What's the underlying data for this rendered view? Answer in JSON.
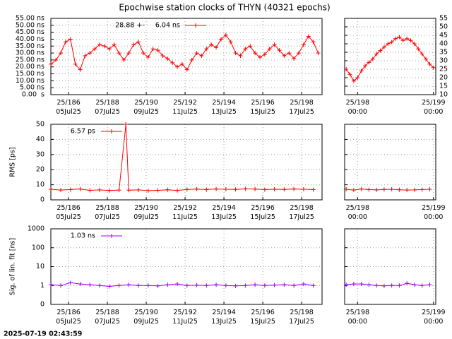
{
  "title": "Epochwise station clocks of THYN (40321 epochs)",
  "footer": "2025-07-19 02:43:59",
  "chart_data": [
    {
      "type": "line",
      "xlim": [
        185.09,
        199.05
      ],
      "ylim": [
        0,
        55
      ],
      "yticks": [
        {
          "value": 0,
          "label": "0.00  s"
        },
        {
          "value": 5,
          "label": "5.00 ns"
        },
        {
          "value": 10,
          "label": "10.00 ns"
        },
        {
          "value": 15,
          "label": "15.00 ns"
        },
        {
          "value": 20,
          "label": "20.00 ns"
        },
        {
          "value": 25,
          "label": "25.00 ns"
        },
        {
          "value": 30,
          "label": "30.00 ns"
        },
        {
          "value": 35,
          "label": "35.00 ns"
        },
        {
          "value": 40,
          "label": "40.00 ns"
        },
        {
          "value": 45,
          "label": "45.00 ns"
        },
        {
          "value": 50,
          "label": "50.00 ns"
        },
        {
          "value": 55,
          "label": "55.00 ns"
        }
      ],
      "xticks": [
        {
          "value": 186,
          "label": "25/186\n05Jul25"
        },
        {
          "value": 188,
          "label": "25/188\n07Jul25"
        },
        {
          "value": 190,
          "label": "25/190\n09Jul25"
        },
        {
          "value": 192,
          "label": "25/192\n11Jul25"
        },
        {
          "value": 194,
          "label": "25/194\n13Jul25"
        },
        {
          "value": 196,
          "label": "25/196\n15Jul25"
        },
        {
          "value": 198,
          "label": "25/198\n17Jul25"
        }
      ],
      "grid": true,
      "ytick_labels": "left",
      "x": [
        185.1,
        185.35,
        185.6,
        185.85,
        186.1,
        186.35,
        186.6,
        186.85,
        187.1,
        187.35,
        187.6,
        187.85,
        188.1,
        188.35,
        188.6,
        188.85,
        189.1,
        189.35,
        189.6,
        189.85,
        190.1,
        190.35,
        190.6,
        190.85,
        191.1,
        191.35,
        191.6,
        191.85,
        192.1,
        192.35,
        192.6,
        192.85,
        193.1,
        193.35,
        193.6,
        193.85,
        194.1,
        194.35,
        194.6,
        194.85,
        195.1,
        195.35,
        195.6,
        195.85,
        196.1,
        196.35,
        196.6,
        196.85,
        197.1,
        197.35,
        197.6,
        197.85,
        198.1,
        198.35,
        198.6,
        198.85
      ],
      "series": [
        {
          "name": "28.88 +-     6.04 ns",
          "color": "#ff0000",
          "values": [
            22,
            25,
            30,
            38,
            40,
            22,
            18,
            28,
            30,
            33,
            36,
            35,
            33,
            36,
            30,
            25,
            30,
            36,
            38,
            30,
            27,
            33,
            32,
            28,
            26,
            23,
            20,
            22,
            18,
            25,
            30,
            28,
            33,
            36,
            34,
            40,
            43,
            38,
            30,
            28,
            33,
            35,
            30,
            27,
            29,
            33,
            36,
            32,
            28,
            30,
            26,
            30,
            36,
            42,
            38,
            30
          ]
        }
      ]
    },
    {
      "type": "line",
      "xlim": [
        197.83,
        199.03
      ],
      "ylim": [
        10,
        55
      ],
      "yticks": [
        10,
        15,
        20,
        25,
        30,
        35,
        40,
        45,
        50,
        55
      ],
      "xticks": [
        {
          "value": 198,
          "label": "25/198\n00:00"
        },
        {
          "value": 199,
          "label": "25/199\n00:00"
        }
      ],
      "grid": true,
      "ytick_labels": "right",
      "x": [
        197.85,
        197.9,
        197.95,
        198.0,
        198.05,
        198.1,
        198.15,
        198.2,
        198.25,
        198.3,
        198.35,
        198.4,
        198.45,
        198.5,
        198.55,
        198.6,
        198.65,
        198.7,
        198.75,
        198.8,
        198.85,
        198.9,
        198.95,
        199.0
      ],
      "series": [
        {
          "color": "#ff0000",
          "values": [
            25,
            22,
            18,
            20,
            24,
            27,
            29,
            31,
            34,
            36,
            38,
            40,
            41,
            43,
            44,
            42,
            43,
            42,
            40,
            37,
            34,
            31,
            28,
            26
          ]
        }
      ]
    },
    {
      "type": "line",
      "xlim": [
        185.09,
        199.05
      ],
      "ylim": [
        0,
        50
      ],
      "yticks": [
        0,
        10,
        20,
        30,
        40,
        50
      ],
      "xticks": [
        {
          "value": 186,
          "label": "25/186\n05Jul25"
        },
        {
          "value": 188,
          "label": "25/188\n07Jul25"
        },
        {
          "value": 190,
          "label": "25/190\n09Jul25"
        },
        {
          "value": 192,
          "label": "25/192\n11Jul25"
        },
        {
          "value": 194,
          "label": "25/194\n13Jul25"
        },
        {
          "value": 196,
          "label": "25/196\n15Jul25"
        },
        {
          "value": 198,
          "label": "25/198\n17Jul25"
        }
      ],
      "grid": true,
      "ytick_labels": "left",
      "ylabel": "RMS [ps]",
      "x": [
        185.1,
        185.6,
        186.1,
        186.6,
        187.1,
        187.6,
        188.1,
        188.6,
        188.95,
        189.1,
        189.6,
        190.1,
        190.6,
        191.1,
        191.6,
        192.1,
        192.6,
        193.1,
        193.6,
        194.1,
        194.6,
        195.1,
        195.6,
        196.1,
        196.6,
        197.1,
        197.6,
        198.1,
        198.6
      ],
      "series": [
        {
          "name": "6.57 ps",
          "color": "#ff0000",
          "values": [
            7,
            6.5,
            6.8,
            7.2,
            6.3,
            6.6,
            6.2,
            6.5,
            50,
            6.4,
            6.6,
            6.1,
            6.3,
            6.7,
            6.2,
            6.9,
            7.1,
            6.8,
            7.2,
            7,
            6.9,
            7.3,
            7.1,
            6.8,
            7,
            6.9,
            7.2,
            7,
            6.8
          ]
        }
      ]
    },
    {
      "type": "line",
      "xlim": [
        197.83,
        199.03
      ],
      "ylim": [
        0,
        50
      ],
      "yticks": [
        0,
        10,
        20,
        30,
        40,
        50
      ],
      "ytick_labels": "none",
      "xticks": [
        {
          "value": 198,
          "label": "25/198\n00:00"
        },
        {
          "value": 199,
          "label": "25/199\n00:00"
        }
      ],
      "grid": true,
      "x": [
        197.85,
        197.95,
        198.05,
        198.15,
        198.25,
        198.35,
        198.45,
        198.55,
        198.65,
        198.75,
        198.85,
        198.95
      ],
      "series": [
        {
          "color": "#ff0000",
          "values": [
            7,
            6.5,
            7.2,
            6.8,
            6.6,
            6.9,
            7,
            6.7,
            6.5,
            6.6,
            6.8,
            7
          ]
        }
      ]
    },
    {
      "type": "line",
      "log": true,
      "xlim": [
        185.09,
        199.05
      ],
      "ylim": [
        0.1,
        1000
      ],
      "yticks": [
        {
          "value": 0.1,
          "label": "0"
        },
        1,
        10,
        100,
        1000
      ],
      "xticks": [
        {
          "value": 186,
          "label": "25/186\n05Jul25"
        },
        {
          "value": 188,
          "label": "25/188\n07Jul25"
        },
        {
          "value": 190,
          "label": "25/190\n09Jul25"
        },
        {
          "value": 192,
          "label": "25/192\n11Jul25"
        },
        {
          "value": 194,
          "label": "25/194\n13Jul25"
        },
        {
          "value": 196,
          "label": "25/196\n15Jul25"
        },
        {
          "value": 198,
          "label": "25/198\n17Jul25"
        }
      ],
      "grid": true,
      "ytick_labels": "left",
      "ylabel": "Sig. of lin. fit [ns]",
      "x": [
        185.1,
        185.6,
        186.1,
        186.6,
        187.1,
        187.6,
        188.1,
        188.6,
        189.1,
        189.6,
        190.1,
        190.6,
        191.1,
        191.6,
        192.1,
        192.6,
        193.1,
        193.6,
        194.1,
        194.6,
        195.1,
        195.6,
        196.1,
        196.6,
        197.1,
        197.6,
        198.1,
        198.6
      ],
      "series": [
        {
          "name": "1.03 ns",
          "color": "#a000f0",
          "values": [
            1.1,
            1.0,
            1.4,
            1.2,
            1.1,
            1.0,
            0.9,
            1.0,
            1.1,
            1.0,
            1.0,
            0.95,
            1.1,
            1.2,
            1.0,
            1.05,
            1.0,
            1.1,
            1.0,
            0.95,
            1.0,
            1.1,
            1.0,
            1.05,
            1.1,
            1.0,
            1.2,
            1.0
          ]
        }
      ]
    },
    {
      "type": "line",
      "log": true,
      "xlim": [
        197.83,
        199.03
      ],
      "ylim": [
        0.1,
        1000
      ],
      "yticks": [
        0.1,
        1,
        10,
        100,
        1000
      ],
      "ytick_labels": "none",
      "xticks": [
        {
          "value": 198,
          "label": "25/198\n00:00"
        },
        {
          "value": 199,
          "label": "25/199\n00:00"
        }
      ],
      "grid": true,
      "x": [
        197.85,
        197.95,
        198.05,
        198.15,
        198.25,
        198.35,
        198.45,
        198.55,
        198.65,
        198.75,
        198.85,
        198.95
      ],
      "series": [
        {
          "color": "#a000f0",
          "values": [
            1.1,
            1.2,
            1.2,
            1.1,
            1.0,
            0.95,
            1.0,
            1.0,
            1.3,
            1.1,
            1.0,
            1.1
          ]
        }
      ]
    }
  ]
}
